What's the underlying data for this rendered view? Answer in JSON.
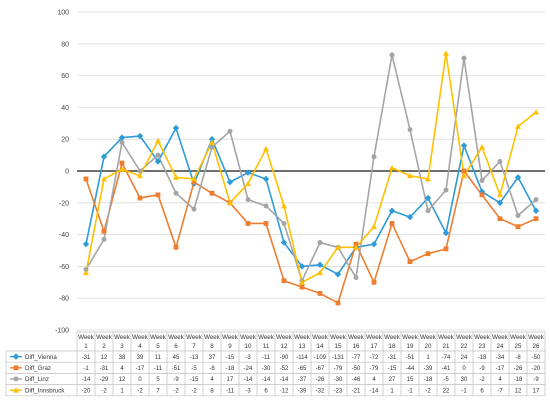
{
  "chart_data": {
    "type": "line",
    "title": "",
    "xlabel": "",
    "ylabel": "",
    "ylim": [
      -100,
      100
    ],
    "yticks": [
      100,
      80,
      60,
      40,
      20,
      0,
      -20,
      -40,
      -60,
      -80,
      -100
    ],
    "grid": true,
    "legend": "data table below chart",
    "categories": [
      {
        "top": "Week",
        "bottom": "1"
      },
      {
        "top": "Week",
        "bottom": "2"
      },
      {
        "top": "Week",
        "bottom": "3"
      },
      {
        "top": "Week",
        "bottom": "4"
      },
      {
        "top": "Week",
        "bottom": "5"
      },
      {
        "top": "Week",
        "bottom": "6"
      },
      {
        "top": "Week",
        "bottom": "7"
      },
      {
        "top": "Week",
        "bottom": "8"
      },
      {
        "top": "Week",
        "bottom": "9"
      },
      {
        "top": "Week",
        "bottom": "10"
      },
      {
        "top": "Week",
        "bottom": "11"
      },
      {
        "top": "Week",
        "bottom": "12"
      },
      {
        "top": "Week",
        "bottom": "13"
      },
      {
        "top": "Week",
        "bottom": "14"
      },
      {
        "top": "Week",
        "bottom": "15"
      },
      {
        "top": "Week",
        "bottom": "16"
      },
      {
        "top": "Week",
        "bottom": "17"
      },
      {
        "top": "Week",
        "bottom": "18"
      },
      {
        "top": "Week",
        "bottom": "19"
      },
      {
        "top": "Week",
        "bottom": "20"
      },
      {
        "top": "Week",
        "bottom": "21"
      },
      {
        "top": "Week",
        "bottom": "22"
      },
      {
        "top": "Week",
        "bottom": "23"
      },
      {
        "top": "Week",
        "bottom": "24"
      },
      {
        "top": "Week",
        "bottom": "25"
      },
      {
        "top": "Week",
        "bottom": "26"
      }
    ],
    "series": [
      {
        "name": "Diff_Vienna",
        "color": "#2e9bd6",
        "marker": "diamond",
        "values": [
          -46,
          9,
          21,
          22,
          6,
          27,
          -8,
          20,
          -7,
          -1,
          -5,
          -45,
          -60,
          -59,
          -65,
          -48,
          -46,
          -25,
          -29,
          -17,
          -39,
          16,
          -13,
          -20,
          -4,
          -25
        ],
        "table": [
          "-31",
          "12",
          "38",
          "39",
          "11",
          "45",
          "-13",
          "37",
          "-15",
          "-3",
          "-11",
          "-90",
          "-114",
          "-109",
          "-131",
          "-77",
          "-72",
          "-31",
          "-51",
          "1",
          "-74",
          "24",
          "-18",
          "-34",
          "-8",
          "-50"
        ]
      },
      {
        "name": "Diff_Graz",
        "color": "#ed7d31",
        "marker": "square",
        "values": [
          -5,
          -38,
          5,
          -17,
          -15,
          -48,
          -7,
          -14,
          -20,
          -33,
          -33,
          -69,
          -73,
          -77,
          -83,
          -46,
          -70,
          -33,
          -57,
          -52,
          -49,
          0,
          -15,
          -30,
          -35,
          -30
        ],
        "table": [
          "-1",
          "-31",
          "4",
          "-17",
          "-11",
          "-51",
          "-5",
          "-8",
          "-18",
          "-24",
          "-30",
          "-52",
          "-65",
          "-67",
          "-79",
          "-50",
          "-79",
          "-15",
          "-44",
          "-39",
          "-41",
          "0",
          "-9",
          "-17",
          "-26",
          "-20"
        ]
      },
      {
        "name": "Diff_Linz",
        "color": "#a5a5a5",
        "marker": "circle",
        "values": [
          -62,
          -43,
          18,
          0,
          10,
          -14,
          -24,
          15,
          25,
          -18,
          -22,
          -33,
          -69,
          -45,
          -48,
          -67,
          9,
          73,
          26,
          -25,
          -12,
          71,
          -6,
          6,
          -28,
          -18
        ],
        "table": [
          "-14",
          "-29",
          "12",
          "0",
          "5",
          "-9",
          "-15",
          "4",
          "17",
          "-14",
          "-14",
          "-14",
          "-37",
          "-26",
          "-30",
          "-46",
          "4",
          "27",
          "15",
          "-18",
          "-5",
          "30",
          "-2",
          "4",
          "-18",
          "-9"
        ]
      },
      {
        "name": "Diff_Innsbruck",
        "color": "#ffc000",
        "marker": "triangle",
        "values": [
          -64,
          -5,
          1,
          -3,
          19,
          -4,
          -5,
          18,
          -20,
          -8,
          14,
          -22,
          -70,
          -64,
          -48,
          -48,
          -35,
          2,
          -3,
          -5,
          74,
          -3,
          15,
          -15,
          28,
          37
        ],
        "table": [
          "-20",
          "-2",
          "1",
          "-2",
          "7",
          "-2",
          "-2",
          "8",
          "-11",
          "-3",
          "6",
          "-12",
          "-39",
          "-32",
          "-23",
          "-21",
          "-14",
          "1",
          "-1",
          "-2",
          "22",
          "-1",
          "6",
          "-7",
          "12",
          "17"
        ]
      }
    ]
  }
}
